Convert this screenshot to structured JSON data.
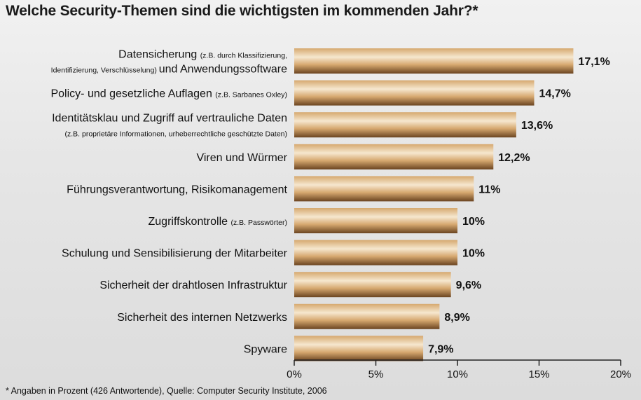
{
  "title": "Welche Security-Themen sind die wichtigsten im kommenden Jahr?*",
  "footnote": "* Angaben in Prozent (426 Antwortende), Quelle: Computer Security Institute, 2006",
  "colors": {
    "bar_light": "#f6e7cf",
    "bar_mid": "#d6a86f",
    "bar_dark": "#6b4420",
    "axis": "#222222"
  },
  "chart_data": {
    "type": "bar",
    "orientation": "horizontal",
    "categories": [
      "Datensicherung (z.B. durch Klassifizierung, Identifizierung, Verschlüsselung) und Anwendungssoftware",
      "Policy- und gesetzliche Auflagen (z.B. Sarbanes Oxley)",
      "Identitätsklau und Zugriff auf vertrauliche Daten (z.B. proprietäre Informationen, urheberrechtliche geschützte Daten)",
      "Viren und Würmer",
      "Führungsverantwortung, Risikomanagement",
      "Zugriffskontrolle (z.B. Passwörter)",
      "Schulung und Sensibilisierung der Mitarbeiter",
      "Sicherheit der drahtlosen Infrastruktur",
      "Sicherheit des internen Netzwerks",
      "Spyware"
    ],
    "category_lines": [
      [
        [
          {
            "text": "Datensicherung ",
            "small": false
          },
          {
            "text": "(z.B. durch Klassifizierung,",
            "small": true
          }
        ],
        [
          {
            "text": "Identifizierung, Verschlüsselung) ",
            "small": true
          },
          {
            "text": "und Anwendungssoftware",
            "small": false
          }
        ]
      ],
      [
        [
          {
            "text": "Policy- und gesetzliche Auflagen ",
            "small": false
          },
          {
            "text": "(z.B. Sarbanes Oxley)",
            "small": true
          }
        ]
      ],
      [
        [
          {
            "text": "Identitätsklau und Zugriff auf vertrauliche Daten",
            "small": false
          }
        ],
        [
          {
            "text": "(z.B. proprietäre Informationen, urheberrechtliche geschützte Daten)",
            "small": true
          }
        ]
      ],
      [
        [
          {
            "text": "Viren und Würmer",
            "small": false
          }
        ]
      ],
      [
        [
          {
            "text": "Führungsverantwortung, Risikomanagement",
            "small": false
          }
        ]
      ],
      [
        [
          {
            "text": "Zugriffskontrolle ",
            "small": false
          },
          {
            "text": "(z.B. Passwörter)",
            "small": true
          }
        ]
      ],
      [
        [
          {
            "text": "Schulung und Sensibilisierung der Mitarbeiter",
            "small": false
          }
        ]
      ],
      [
        [
          {
            "text": "Sicherheit der drahtlosen Infrastruktur",
            "small": false
          }
        ]
      ],
      [
        [
          {
            "text": "Sicherheit des internen Netzwerks",
            "small": false
          }
        ]
      ],
      [
        [
          {
            "text": "Spyware",
            "small": false
          }
        ]
      ]
    ],
    "values": [
      17.1,
      14.7,
      13.6,
      12.2,
      11,
      10,
      10,
      9.6,
      8.9,
      7.9
    ],
    "value_labels": [
      "17,1%",
      "14,7%",
      "13,6%",
      "12,2%",
      "11%",
      "10%",
      "10%",
      "9,6%",
      "8,9%",
      "7,9%"
    ],
    "xlim": [
      0,
      20
    ],
    "xticks": [
      0,
      5,
      10,
      15,
      20
    ],
    "xtick_labels": [
      "0%",
      "5%",
      "10%",
      "15%",
      "20%"
    ],
    "grid": false,
    "legend": "none"
  }
}
